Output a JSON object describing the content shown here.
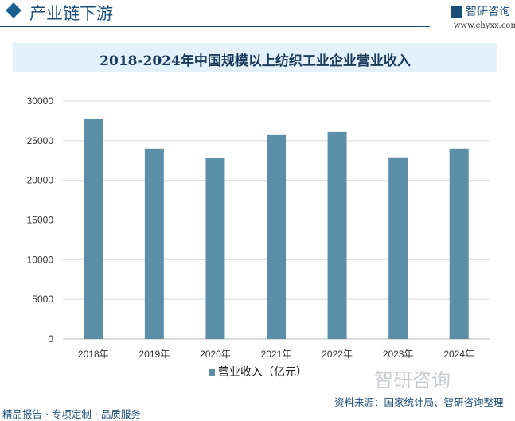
{
  "header": {
    "title": "产业链下游",
    "logo_text": "智研咨询",
    "site": "www.chyxx.com"
  },
  "chart_data": {
    "type": "bar",
    "title": "2018-2024年中国规模以上纺织工业企业营业收入",
    "categories": [
      "2018年",
      "2019年",
      "2020年",
      "2021年",
      "2022年",
      "2023年",
      "2024年"
    ],
    "series": [
      {
        "name": "营业收入（亿元）",
        "values": [
          27800,
          24000,
          22800,
          25700,
          26100,
          22900,
          24000
        ]
      }
    ],
    "ylim": [
      0,
      30000
    ],
    "yticks": [
      0,
      5000,
      10000,
      15000,
      20000,
      25000,
      30000
    ],
    "grid": true,
    "legend": "bottom",
    "color": "#5b8fa8"
  },
  "watermark": "智研咨询",
  "footer": {
    "source": "资料来源：国家统计局、智研咨询整理",
    "slogan": "精品报告 · 专项定制 · 品质服务"
  }
}
